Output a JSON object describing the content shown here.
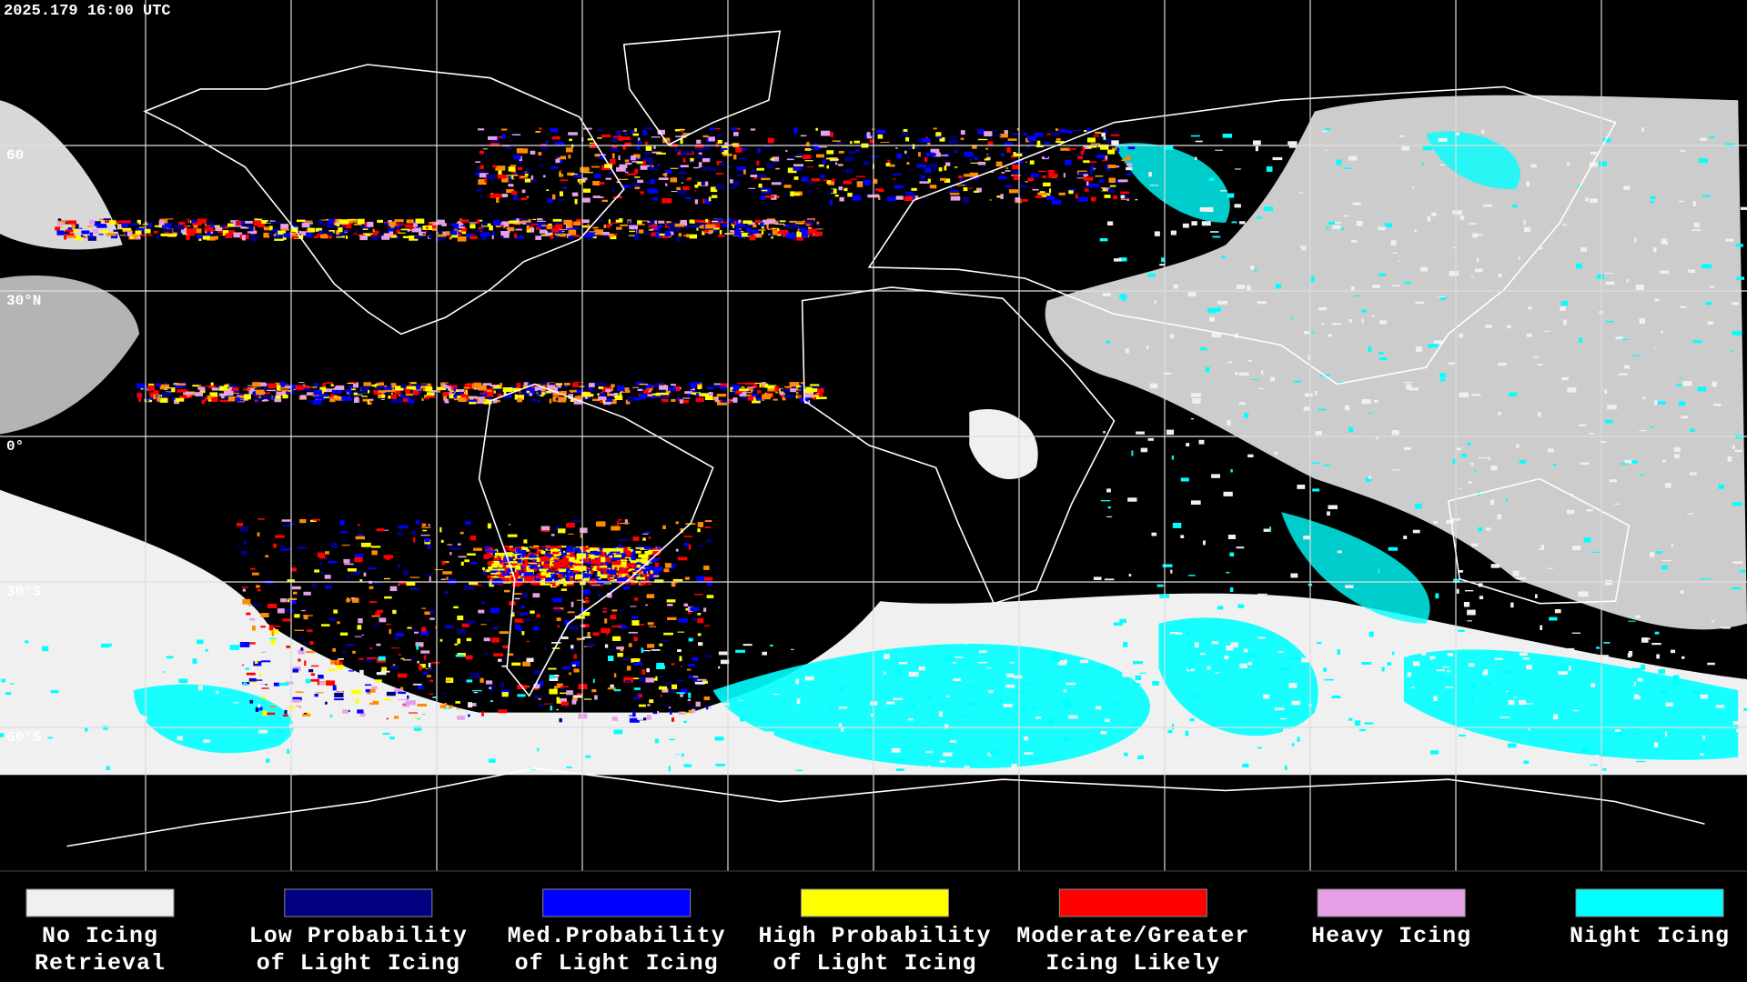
{
  "header": {
    "timestamp": "2025.179 16:00 UTC"
  },
  "map": {
    "latitude_labels": [
      "60",
      "30°N",
      "0°",
      "30°S",
      "60°S"
    ]
  },
  "legend": [
    {
      "color": "#f0f0f0",
      "lines": [
        "No Icing",
        "Retrieval"
      ]
    },
    {
      "color": "#000080",
      "lines": [
        "Low Probability",
        "of Light Icing"
      ]
    },
    {
      "color": "#0000ff",
      "lines": [
        "Med.Probability",
        "of Light Icing"
      ]
    },
    {
      "color": "#ffff00",
      "lines": [
        "High Probability",
        "of Light Icing"
      ]
    },
    {
      "color": "#ff0000",
      "lines": [
        "Moderate/Greater",
        "Icing Likely"
      ]
    },
    {
      "color": "#e6a0e6",
      "lines": [
        "Heavy Icing"
      ]
    },
    {
      "color": "#00ffff",
      "lines": [
        "Night Icing"
      ]
    }
  ]
}
